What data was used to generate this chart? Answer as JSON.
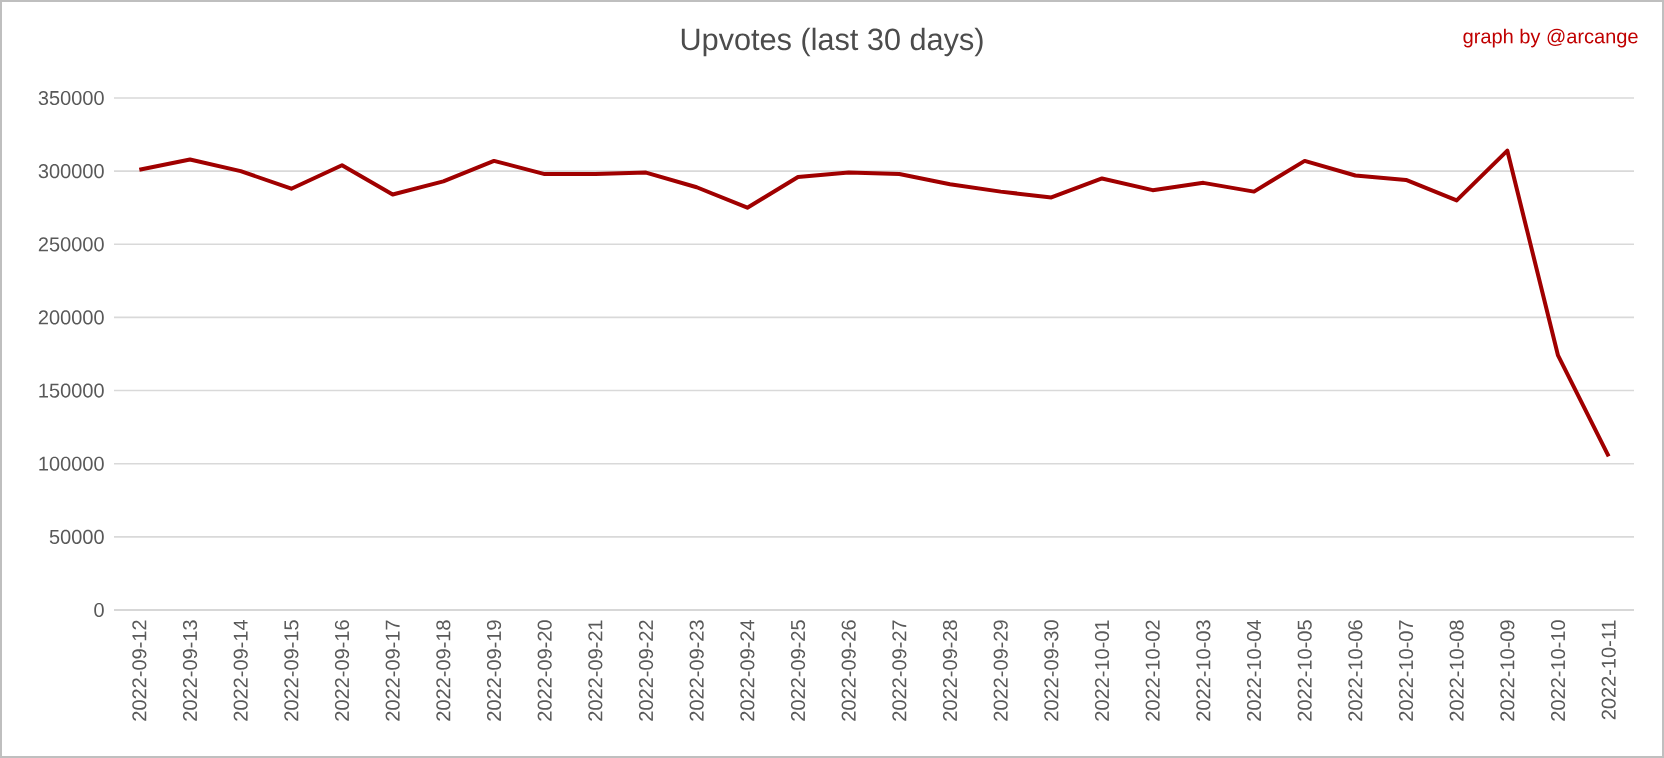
{
  "chart_data": {
    "type": "line",
    "title": "Upvotes (last 30 days)",
    "annotations": [
      "graph by @arcange"
    ],
    "categories": [
      "2022-09-12",
      "2022-09-13",
      "2022-09-14",
      "2022-09-15",
      "2022-09-16",
      "2022-09-17",
      "2022-09-18",
      "2022-09-19",
      "2022-09-20",
      "2022-09-21",
      "2022-09-22",
      "2022-09-23",
      "2022-09-24",
      "2022-09-25",
      "2022-09-26",
      "2022-09-27",
      "2022-09-28",
      "2022-09-29",
      "2022-09-30",
      "2022-10-01",
      "2022-10-02",
      "2022-10-03",
      "2022-10-04",
      "2022-10-05",
      "2022-10-06",
      "2022-10-07",
      "2022-10-08",
      "2022-10-09",
      "2022-10-10",
      "2022-10-11"
    ],
    "series": [
      {
        "color": "#a00000",
        "values": [
          301000,
          308000,
          300000,
          288000,
          304000,
          284000,
          293000,
          307000,
          298000,
          298000,
          299000,
          289000,
          275000,
          296000,
          299000,
          298000,
          291000,
          286000,
          282000,
          295000,
          287000,
          292000,
          286000,
          307000,
          297000,
          294000,
          280000,
          314000,
          174000,
          105000
        ]
      }
    ],
    "ylim": [
      0,
      350000
    ],
    "yticks": [
      0,
      50000,
      100000,
      150000,
      200000,
      250000,
      300000,
      350000
    ],
    "grid": "y",
    "marker": "none",
    "line_style": "solid"
  }
}
